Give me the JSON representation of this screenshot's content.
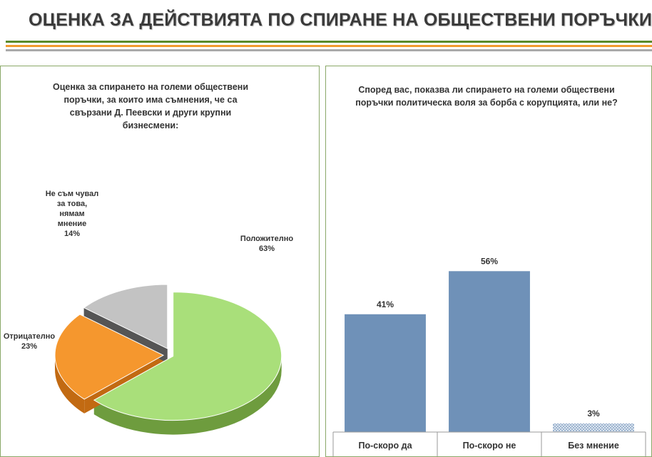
{
  "header": {
    "title": "ОЦЕНКА ЗА ДЕЙСТВИЯТА ПО СПИРАНЕ НА ОБЩЕСТВЕНИ ПОРЪЧКИ",
    "rule_colors": [
      "#5a8a2a",
      "#f29a2e",
      "#a9a9a9"
    ]
  },
  "chart_data": [
    {
      "type": "pie",
      "title": "Оценка за спирането на големи обществени поръчки, за които има съмнения, че са свързани Д. Пеевски и други крупни бизнесмени:",
      "slices": [
        {
          "label": "Положително",
          "value": 63,
          "value_label": "63%",
          "color": "#a9df7a",
          "side_color": "#6e9c3e"
        },
        {
          "label": "Отрицателно",
          "value": 23,
          "value_label": "23%",
          "color": "#f5972e",
          "side_color": "#c26a12"
        },
        {
          "label_lines": [
            "Не съм чувал",
            "за това,",
            "нямам",
            "мнение"
          ],
          "value": 14,
          "value_label": "14%",
          "color": "#c3c3c3",
          "side_color": "#555555"
        }
      ]
    },
    {
      "type": "bar",
      "title": "Според вас, показва ли спирането на големи обществени поръчки политическа воля за борба с корупцията, или не?",
      "categories": [
        "По-скоро да",
        "По-скоро не",
        "Без мнение"
      ],
      "values": [
        41,
        56,
        3
      ],
      "value_labels": [
        "41%",
        "56%",
        "3%"
      ],
      "bar_color": "#6f91b8",
      "ylim": [
        0,
        100
      ],
      "grid": false
    }
  ]
}
